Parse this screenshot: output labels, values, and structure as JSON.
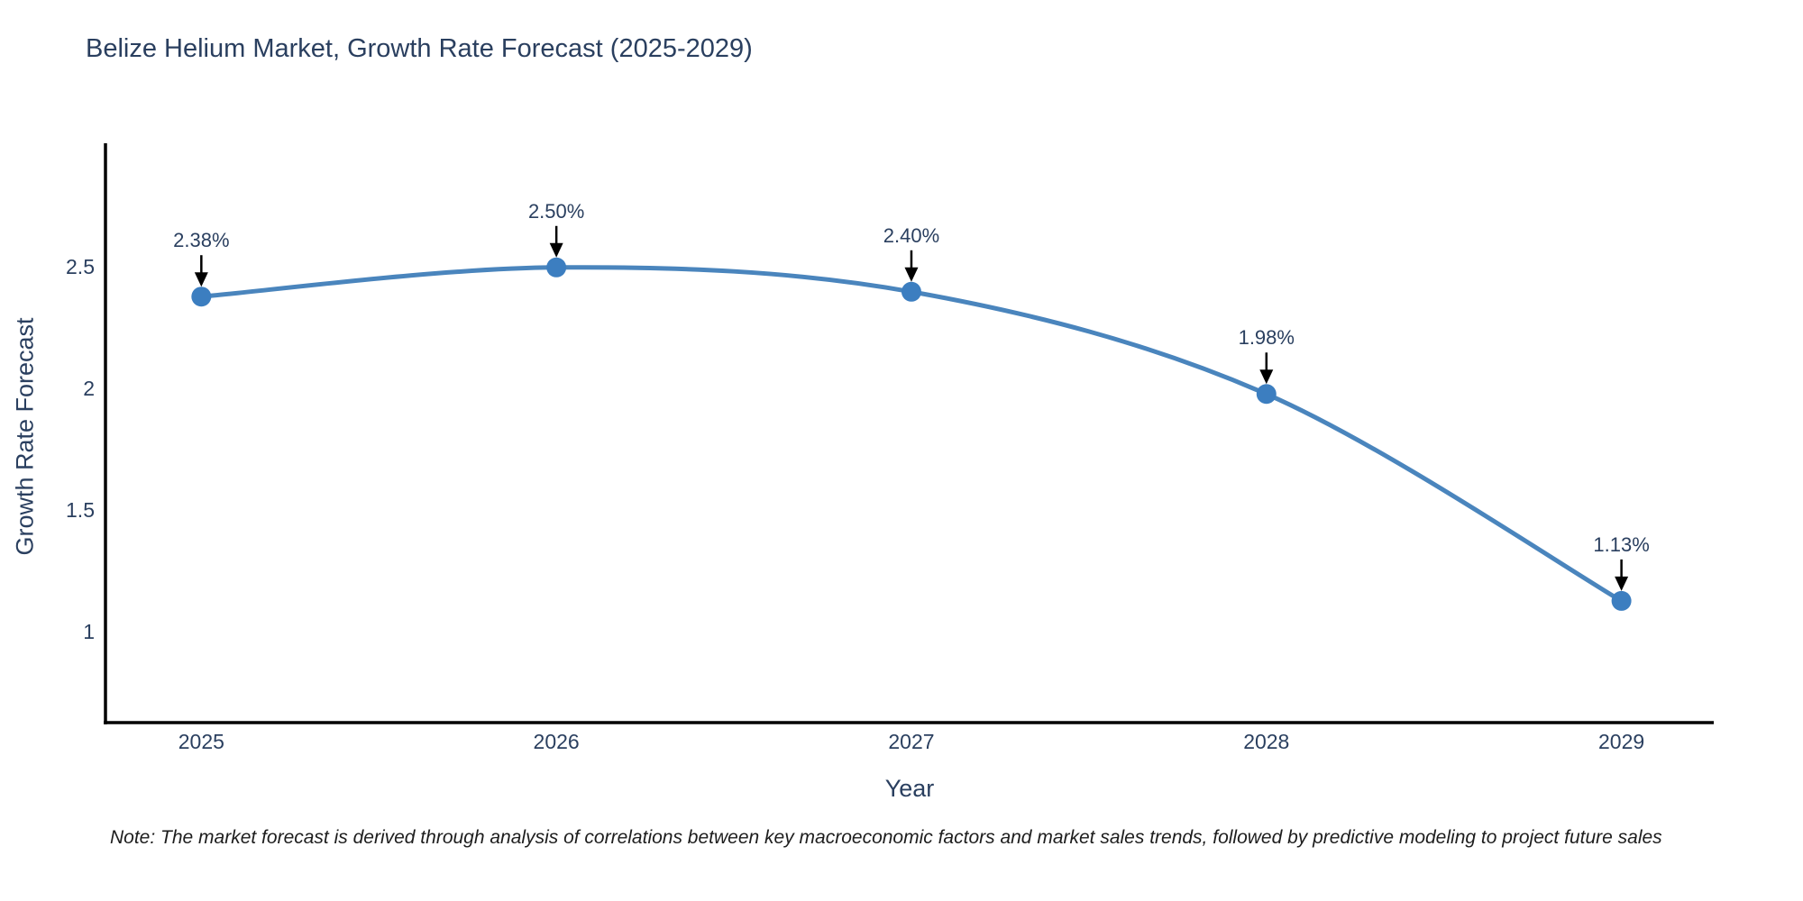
{
  "chart_data": {
    "type": "line",
    "title": "Belize Helium Market, Growth Rate Forecast (2025-2029)",
    "xlabel": "Year",
    "ylabel": "Growth Rate Forecast",
    "x": [
      2025,
      2026,
      2027,
      2028,
      2029
    ],
    "values": [
      2.38,
      2.5,
      2.4,
      1.98,
      1.13
    ],
    "point_labels": [
      "2.38%",
      "2.50%",
      "2.40%",
      "1.98%",
      "1.13%"
    ],
    "x_tick_labels": [
      "2025",
      "2026",
      "2027",
      "2028",
      "2029"
    ],
    "y_ticks": [
      2.5,
      2.0,
      1.5,
      1.0
    ],
    "y_tick_labels": [
      "2.5",
      "2",
      "1.5",
      "1"
    ],
    "xlim": [
      2024.73,
      2029.26
    ],
    "ylim": [
      0.63,
      3.01
    ],
    "grid": false,
    "legend": false,
    "line_shape": "spline",
    "colors": {
      "line": "#4a85bd",
      "marker": "#3c7ec0",
      "axis": "#000000",
      "text": "#2a3f5f",
      "annotation_arrow": "#000000"
    }
  },
  "footnote": "Note: The market forecast is derived through analysis of correlations between key macroeconomic factors and market sales trends, followed by predictive modeling to project future sales"
}
